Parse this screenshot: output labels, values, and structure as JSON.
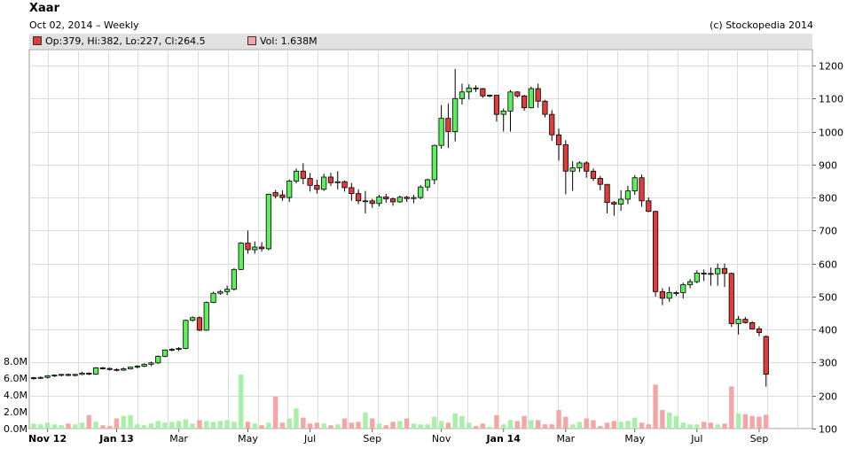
{
  "title": "Xaar",
  "subtitle": "Oct 02, 2014 – Weekly",
  "copyright": "(c) Stockopedia 2014",
  "legend": {
    "ohlc": "Op:379, Hi:382, Lo:227, Cl:264.5",
    "volume": "Vol: 1.638M",
    "ohlc_color": "#e03c3c",
    "volume_color": "#f4a6a6"
  },
  "colors": {
    "up": "#5cf05c",
    "down": "#e03c3c",
    "up_volume": "#a8f0a8",
    "down_volume": "#f4a6a6",
    "grid": "#dddddd",
    "legend_bg": "#e1e1e1"
  },
  "chart_data": {
    "type": "candlestick",
    "price_axis": {
      "min": 100,
      "max": 1200,
      "ticks": [
        100,
        200,
        300,
        400,
        500,
        600,
        700,
        800,
        900,
        1000,
        1100,
        1200
      ],
      "position": "right"
    },
    "volume_axis": {
      "ticks": [
        "0.0M",
        "2.0M",
        "4.0M",
        "6.0M",
        "8.0M"
      ],
      "values": [
        0,
        2,
        4,
        6,
        8
      ],
      "max": 10.5,
      "position": "left"
    },
    "x_ticks": [
      "Nov 12",
      "Jan 13",
      "Mar",
      "May",
      "Jul",
      "Sep",
      "Nov",
      "Jan 14",
      "Mar",
      "May",
      "Jul",
      "Sep"
    ],
    "x_tick_positions": [
      2,
      12,
      21,
      31,
      40,
      49,
      59,
      68,
      77,
      87,
      96,
      105
    ],
    "x_tick_bold": [
      true,
      true,
      false,
      false,
      false,
      false,
      false,
      true,
      false,
      false,
      false,
      false
    ],
    "grid": true,
    "candles": [
      [
        252,
        257,
        248,
        254,
        0.6
      ],
      [
        254,
        258,
        250,
        255,
        0.5
      ],
      [
        255,
        262,
        252,
        260,
        0.7
      ],
      [
        260,
        264,
        256,
        262,
        0.5
      ],
      [
        262,
        266,
        258,
        264,
        0.4
      ],
      [
        264,
        267,
        259,
        261,
        0.6
      ],
      [
        261,
        266,
        258,
        264,
        0.5
      ],
      [
        264,
        272,
        262,
        268,
        0.7
      ],
      [
        268,
        270,
        262,
        265,
        1.6
      ],
      [
        265,
        286,
        263,
        284,
        0.8
      ],
      [
        284,
        287,
        279,
        282,
        0.4
      ],
      [
        282,
        285,
        276,
        279,
        0.3
      ],
      [
        279,
        283,
        274,
        277,
        1.2
      ],
      [
        277,
        285,
        275,
        281,
        1.5
      ],
      [
        281,
        288,
        279,
        286,
        1.6
      ],
      [
        286,
        292,
        282,
        289,
        0.5
      ],
      [
        289,
        298,
        286,
        295,
        0.4
      ],
      [
        295,
        303,
        289,
        299,
        0.6
      ],
      [
        299,
        322,
        296,
        319,
        0.9
      ],
      [
        319,
        340,
        316,
        338,
        0.7
      ],
      [
        338,
        344,
        334,
        340,
        0.8
      ],
      [
        340,
        347,
        335,
        343,
        0.9
      ],
      [
        343,
        430,
        340,
        428,
        1.1
      ],
      [
        428,
        440,
        424,
        436,
        0.6
      ],
      [
        436,
        440,
        395,
        398,
        1.0
      ],
      [
        398,
        485,
        396,
        482,
        0.9
      ],
      [
        482,
        515,
        480,
        510,
        0.8
      ],
      [
        510,
        520,
        505,
        515,
        0.9
      ],
      [
        515,
        533,
        504,
        522,
        1.0
      ],
      [
        522,
        586,
        518,
        582,
        0.8
      ],
      [
        582,
        665,
        580,
        662,
        6.4
      ],
      [
        662,
        700,
        630,
        642,
        0.8
      ],
      [
        642,
        667,
        630,
        650,
        0.6
      ],
      [
        650,
        665,
        636,
        645,
        0.4
      ],
      [
        645,
        812,
        640,
        810,
        0.7
      ],
      [
        815,
        823,
        797,
        805,
        3.8
      ],
      [
        808,
        822,
        790,
        800,
        0.7
      ],
      [
        800,
        855,
        787,
        850,
        1.2
      ],
      [
        850,
        888,
        843,
        880,
        2.4
      ],
      [
        880,
        904,
        840,
        858,
        1.3
      ],
      [
        858,
        874,
        818,
        837,
        0.6
      ],
      [
        837,
        854,
        812,
        825,
        0.7
      ],
      [
        825,
        872,
        820,
        862,
        0.6
      ],
      [
        862,
        875,
        835,
        845,
        0.4
      ],
      [
        845,
        880,
        825,
        848,
        0.5
      ],
      [
        848,
        852,
        818,
        830,
        1.2
      ],
      [
        830,
        844,
        790,
        812,
        0.7
      ],
      [
        812,
        825,
        780,
        790,
        0.8
      ],
      [
        790,
        820,
        752,
        790,
        1.9
      ],
      [
        790,
        796,
        769,
        782,
        1.2
      ],
      [
        782,
        808,
        773,
        802,
        0.6
      ],
      [
        802,
        811,
        784,
        796,
        0.4
      ],
      [
        796,
        800,
        775,
        787,
        0.8
      ],
      [
        787,
        806,
        784,
        801,
        0.9
      ],
      [
        801,
        805,
        787,
        797,
        1.2
      ],
      [
        797,
        808,
        783,
        800,
        0.6
      ],
      [
        800,
        838,
        795,
        832,
        0.5
      ],
      [
        832,
        857,
        820,
        854,
        0.5
      ],
      [
        854,
        960,
        840,
        958,
        1.4
      ],
      [
        958,
        1080,
        948,
        1040,
        0.9
      ],
      [
        1040,
        1085,
        950,
        1000,
        0.7
      ],
      [
        1000,
        1190,
        970,
        1100,
        1.8
      ],
      [
        1100,
        1145,
        1082,
        1120,
        1.5
      ],
      [
        1120,
        1143,
        1097,
        1132,
        0.7
      ],
      [
        1132,
        1140,
        1120,
        1130,
        0.3
      ],
      [
        1130,
        1132,
        1102,
        1108,
        0.6
      ],
      [
        1108,
        1112,
        1104,
        1110,
        0.2
      ],
      [
        1110,
        1110,
        1030,
        1052,
        1.6
      ],
      [
        1052,
        1070,
        1000,
        1062,
        0.5
      ],
      [
        1062,
        1126,
        1000,
        1120,
        1.0
      ],
      [
        1120,
        1122,
        1103,
        1108,
        0.9
      ],
      [
        1108,
        1111,
        1063,
        1072,
        1.5
      ],
      [
        1072,
        1136,
        1070,
        1130,
        1.0
      ],
      [
        1130,
        1145,
        1072,
        1092,
        1.0
      ],
      [
        1092,
        1096,
        1043,
        1052,
        0.5
      ],
      [
        1052,
        1065,
        972,
        990,
        0.5
      ],
      [
        990,
        1009,
        912,
        960,
        2.2
      ],
      [
        960,
        974,
        810,
        880,
        1.4
      ],
      [
        880,
        910,
        820,
        890,
        0.5
      ],
      [
        890,
        910,
        877,
        905,
        0.8
      ],
      [
        905,
        910,
        860,
        880,
        1.2
      ],
      [
        880,
        888,
        850,
        858,
        1.0
      ],
      [
        858,
        865,
        822,
        840,
        0.3
      ],
      [
        840,
        840,
        752,
        785,
        0.7
      ],
      [
        785,
        790,
        745,
        780,
        0.9
      ],
      [
        780,
        822,
        760,
        795,
        0.8
      ],
      [
        795,
        836,
        780,
        820,
        0.9
      ],
      [
        820,
        868,
        808,
        860,
        1.3
      ],
      [
        860,
        870,
        772,
        790,
        0.7
      ],
      [
        790,
        800,
        756,
        758,
        0.5
      ],
      [
        758,
        760,
        500,
        515,
        5.2
      ],
      [
        515,
        525,
        474,
        495,
        2.2
      ],
      [
        495,
        530,
        484,
        512,
        1.9
      ],
      [
        512,
        517,
        502,
        512,
        1.5
      ],
      [
        512,
        542,
        494,
        536,
        0.7
      ],
      [
        536,
        553,
        525,
        545,
        0.5
      ],
      [
        545,
        580,
        540,
        571,
        0.5
      ],
      [
        571,
        582,
        547,
        570,
        0.8
      ],
      [
        570,
        588,
        533,
        569,
        0.7
      ],
      [
        569,
        600,
        533,
        585,
        0.5
      ],
      [
        585,
        600,
        529,
        570,
        0.6
      ],
      [
        570,
        573,
        408,
        418,
        5.0
      ],
      [
        418,
        441,
        385,
        431,
        1.8
      ],
      [
        431,
        438,
        418,
        421,
        1.7
      ],
      [
        421,
        425,
        400,
        402,
        1.5
      ],
      [
        402,
        410,
        380,
        391,
        1.4
      ],
      [
        379,
        382,
        227,
        264.5,
        1.638
      ]
    ]
  }
}
